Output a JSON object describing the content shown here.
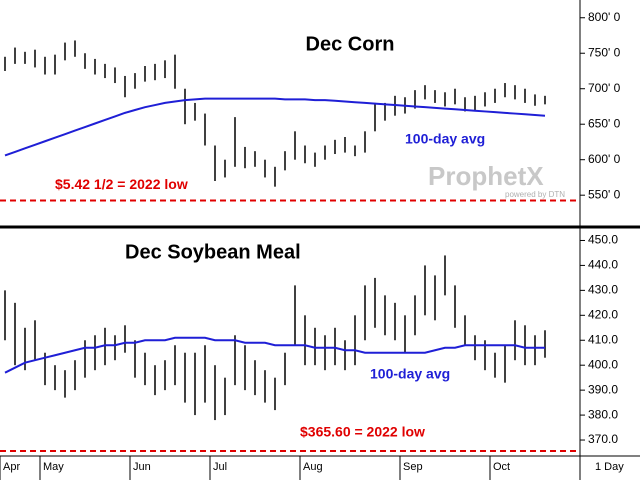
{
  "chart_data": [
    {
      "type": "ohlc",
      "title": "Dec Corn",
      "color": "#000000",
      "high": [
        745,
        758,
        752,
        755,
        745,
        748,
        765,
        768,
        750,
        742,
        735,
        730,
        718,
        722,
        732,
        735,
        740,
        748,
        700,
        680,
        665,
        620,
        600,
        660,
        618,
        612,
        600,
        590,
        612,
        640,
        620,
        610,
        620,
        628,
        632,
        620,
        640,
        680,
        680,
        690,
        688,
        698,
        705,
        698,
        695,
        700,
        688,
        690,
        695,
        700,
        708,
        705,
        700,
        692,
        690
      ],
      "low": [
        725,
        735,
        735,
        730,
        720,
        720,
        740,
        745,
        728,
        720,
        715,
        708,
        688,
        700,
        710,
        712,
        715,
        700,
        650,
        655,
        620,
        570,
        575,
        590,
        588,
        590,
        575,
        562,
        585,
        600,
        595,
        590,
        600,
        608,
        610,
        605,
        610,
        640,
        655,
        662,
        665,
        672,
        685,
        680,
        675,
        678,
        668,
        670,
        675,
        680,
        688,
        685,
        680,
        676,
        678
      ],
      "ma": {
        "label": "100-day avg",
        "color": "#1f1fd6",
        "values": [
          606,
          611,
          616,
          621,
          626,
          631,
          636,
          641,
          646,
          651,
          656,
          661,
          666,
          670,
          674,
          677,
          680,
          682,
          684,
          685,
          686,
          686,
          686,
          686,
          686,
          686,
          686,
          686,
          685,
          685,
          685,
          684,
          684,
          683,
          682,
          681,
          680,
          679,
          678,
          677,
          676,
          675,
          674,
          673,
          672,
          671,
          670,
          669,
          668,
          667,
          666,
          665,
          664,
          663,
          662
        ]
      },
      "low_line": {
        "value": 542.5,
        "label": "$5.42 1/2 = 2022 low",
        "color": "#e00000"
      },
      "watermark": {
        "brand": "ProphetX",
        "note": "powered by DTN"
      },
      "ylim": [
        508,
        825
      ],
      "yticks": [
        {
          "value": 550,
          "label": "550' 0"
        },
        {
          "value": 600,
          "label": "600' 0"
        },
        {
          "value": 650,
          "label": "650' 0"
        },
        {
          "value": 700,
          "label": "700' 0"
        },
        {
          "value": 750,
          "label": "750' 0"
        },
        {
          "value": 800,
          "label": "800' 0"
        }
      ]
    },
    {
      "type": "ohlc",
      "title": "Dec Soybean Meal",
      "color": "#000000",
      "high": [
        430,
        425,
        415,
        418,
        405,
        400,
        398,
        402,
        410,
        412,
        415,
        412,
        416,
        410,
        405,
        400,
        402,
        408,
        405,
        405,
        408,
        400,
        395,
        412,
        408,
        402,
        398,
        395,
        405,
        432,
        420,
        415,
        412,
        415,
        410,
        420,
        432,
        435,
        428,
        425,
        420,
        428,
        440,
        436,
        444,
        432,
        420,
        412,
        410,
        405,
        408,
        418,
        416,
        412,
        414
      ],
      "low": [
        410,
        400,
        398,
        402,
        392,
        390,
        387,
        390,
        395,
        398,
        400,
        402,
        405,
        395,
        392,
        388,
        390,
        392,
        385,
        380,
        385,
        378,
        380,
        392,
        390,
        388,
        385,
        382,
        392,
        408,
        400,
        400,
        398,
        400,
        398,
        400,
        410,
        415,
        412,
        410,
        405,
        412,
        420,
        418,
        428,
        415,
        408,
        402,
        398,
        395,
        393,
        402,
        400,
        400,
        403
      ],
      "ma": {
        "label": "100-day avg",
        "color": "#1f1fd6",
        "values": [
          397,
          399,
          401,
          402,
          403,
          404,
          405,
          406,
          407,
          407,
          408,
          408,
          409,
          409,
          410,
          410,
          410,
          411,
          411,
          411,
          411,
          410,
          410,
          410,
          409,
          409,
          409,
          408,
          408,
          408,
          408,
          407,
          407,
          407,
          406,
          406,
          405,
          405,
          405,
          405,
          405,
          405,
          405,
          406,
          407,
          407,
          408,
          408,
          408,
          408,
          408,
          408,
          407,
          407,
          407
        ]
      },
      "low_line": {
        "value": 365.6,
        "label": "$365.60 = 2022 low",
        "color": "#e00000"
      },
      "categories": [
        "Apr",
        null,
        null,
        null,
        "May",
        null,
        null,
        null,
        null,
        null,
        null,
        null,
        null,
        "Jun",
        null,
        null,
        null,
        null,
        null,
        null,
        null,
        "Jul",
        null,
        null,
        null,
        null,
        null,
        null,
        null,
        null,
        "Aug",
        null,
        null,
        null,
        null,
        null,
        null,
        null,
        null,
        null,
        "Sep",
        null,
        null,
        null,
        null,
        null,
        null,
        null,
        null,
        "Oct",
        null,
        null,
        null,
        null,
        null
      ],
      "period": "1 Day",
      "ylim": [
        364,
        455
      ],
      "yticks": [
        {
          "value": 370,
          "label": "370.0"
        },
        {
          "value": 380,
          "label": "380.0"
        },
        {
          "value": 390,
          "label": "390.0"
        },
        {
          "value": 400,
          "label": "400.0"
        },
        {
          "value": 410,
          "label": "410.0"
        },
        {
          "value": 420,
          "label": "420.0"
        },
        {
          "value": 430,
          "label": "430.0"
        },
        {
          "value": 440,
          "label": "440.0"
        },
        {
          "value": 450,
          "label": "450.0"
        }
      ]
    }
  ]
}
